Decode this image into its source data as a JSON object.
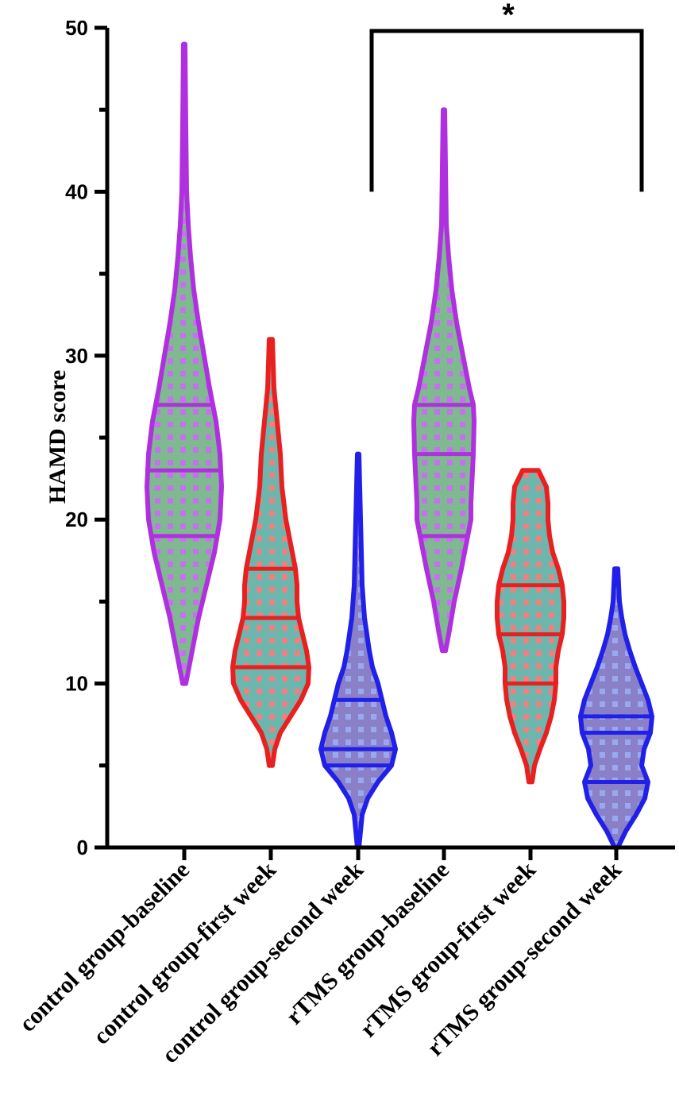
{
  "chart_data": {
    "type": "violin",
    "ylabel": "HAMD score",
    "ylim": [
      0,
      50
    ],
    "yticks_major": [
      0,
      10,
      20,
      30,
      40,
      50
    ],
    "yticks_minor_step": 5,
    "categories": [
      "control group-baseline",
      "control group-first week",
      "control group-second week",
      "rTMS group-baseline",
      "rTMS group-first week",
      "rTMS group-second week"
    ],
    "violins": [
      {
        "category": "control group-baseline",
        "color": "#b030e0",
        "fill": "#7fb98f",
        "dot": "#c670f0",
        "min": 10,
        "max": 49,
        "q1": 19,
        "median": 23,
        "q3": 27,
        "profile": [
          [
            10,
            0.02
          ],
          [
            12,
            0.1
          ],
          [
            14,
            0.18
          ],
          [
            16,
            0.28
          ],
          [
            18,
            0.38
          ],
          [
            20,
            0.45
          ],
          [
            22,
            0.47
          ],
          [
            24,
            0.45
          ],
          [
            26,
            0.4
          ],
          [
            28,
            0.32
          ],
          [
            30,
            0.25
          ],
          [
            32,
            0.18
          ],
          [
            34,
            0.12
          ],
          [
            36,
            0.08
          ],
          [
            38,
            0.05
          ],
          [
            40,
            0.03
          ],
          [
            44,
            0.02
          ],
          [
            49,
            0.01
          ]
        ]
      },
      {
        "category": "control group-first week",
        "color": "#e82020",
        "fill": "#6cb6ae",
        "dot": "#f08080",
        "min": 5,
        "max": 31,
        "q1": 11,
        "median": 14,
        "q3": 17,
        "profile": [
          [
            5,
            0.02
          ],
          [
            6,
            0.05
          ],
          [
            7,
            0.12
          ],
          [
            8,
            0.25
          ],
          [
            9,
            0.38
          ],
          [
            10,
            0.47
          ],
          [
            11,
            0.48
          ],
          [
            12,
            0.45
          ],
          [
            13,
            0.4
          ],
          [
            14,
            0.35
          ],
          [
            15,
            0.33
          ],
          [
            16,
            0.33
          ],
          [
            17,
            0.31
          ],
          [
            18,
            0.27
          ],
          [
            19,
            0.23
          ],
          [
            20,
            0.19
          ],
          [
            22,
            0.14
          ],
          [
            24,
            0.12
          ],
          [
            26,
            0.08
          ],
          [
            28,
            0.04
          ],
          [
            31,
            0.02
          ]
        ]
      },
      {
        "category": "control group-second week",
        "color": "#2020e8",
        "fill": "#8a80c8",
        "dot": "#9aa8f0",
        "min": 0,
        "max": 24,
        "q1": 5,
        "median": 6,
        "q3": 9,
        "profile": [
          [
            0,
            0.01
          ],
          [
            2,
            0.05
          ],
          [
            3,
            0.12
          ],
          [
            4,
            0.25
          ],
          [
            5,
            0.42
          ],
          [
            6,
            0.47
          ],
          [
            7,
            0.42
          ],
          [
            8,
            0.35
          ],
          [
            9,
            0.3
          ],
          [
            10,
            0.25
          ],
          [
            11,
            0.18
          ],
          [
            12,
            0.14
          ],
          [
            14,
            0.08
          ],
          [
            16,
            0.05
          ],
          [
            18,
            0.04
          ],
          [
            20,
            0.03
          ],
          [
            24,
            0.01
          ]
        ]
      },
      {
        "category": "rTMS group-baseline",
        "color": "#b030e0",
        "fill": "#7fb98f",
        "dot": "#c670f0",
        "min": 12,
        "max": 45,
        "q1": 19,
        "median": 24,
        "q3": 27,
        "profile": [
          [
            12,
            0.02
          ],
          [
            13,
            0.06
          ],
          [
            15,
            0.13
          ],
          [
            17,
            0.22
          ],
          [
            19,
            0.3
          ],
          [
            20,
            0.34
          ],
          [
            21,
            0.34
          ],
          [
            22,
            0.35
          ],
          [
            24,
            0.37
          ],
          [
            26,
            0.38
          ],
          [
            27,
            0.37
          ],
          [
            28,
            0.32
          ],
          [
            30,
            0.24
          ],
          [
            32,
            0.16
          ],
          [
            34,
            0.1
          ],
          [
            36,
            0.06
          ],
          [
            38,
            0.03
          ],
          [
            45,
            0.01
          ]
        ]
      },
      {
        "category": "rTMS group-first week",
        "color": "#e82020",
        "fill": "#6cb6ae",
        "dot": "#f08080",
        "min": 4,
        "max": 23,
        "q1": 10,
        "median": 13,
        "q3": 16,
        "profile": [
          [
            4,
            0.02
          ],
          [
            5,
            0.05
          ],
          [
            6,
            0.12
          ],
          [
            7,
            0.2
          ],
          [
            8,
            0.26
          ],
          [
            9,
            0.3
          ],
          [
            10,
            0.32
          ],
          [
            11,
            0.32
          ],
          [
            12,
            0.35
          ],
          [
            13,
            0.4
          ],
          [
            14,
            0.42
          ],
          [
            15,
            0.42
          ],
          [
            16,
            0.4
          ],
          [
            17,
            0.35
          ],
          [
            18,
            0.28
          ],
          [
            19,
            0.24
          ],
          [
            20,
            0.22
          ],
          [
            21,
            0.22
          ],
          [
            22,
            0.2
          ],
          [
            23,
            0.1
          ]
        ]
      },
      {
        "category": "rTMS group-second week",
        "color": "#2020e8",
        "fill": "#8a80c8",
        "dot": "#9aa8f0",
        "min": 0,
        "max": 17,
        "q1": 4,
        "median": 7,
        "q3": 8,
        "profile": [
          [
            0,
            0.02
          ],
          [
            1,
            0.12
          ],
          [
            2,
            0.25
          ],
          [
            3,
            0.36
          ],
          [
            4,
            0.4
          ],
          [
            5,
            0.32
          ],
          [
            6,
            0.35
          ],
          [
            7,
            0.43
          ],
          [
            8,
            0.45
          ],
          [
            9,
            0.4
          ],
          [
            10,
            0.32
          ],
          [
            11,
            0.24
          ],
          [
            12,
            0.17
          ],
          [
            13,
            0.11
          ],
          [
            14,
            0.07
          ],
          [
            15,
            0.04
          ],
          [
            17,
            0.02
          ]
        ]
      }
    ],
    "significance": {
      "label": "*",
      "from_category": 3,
      "to_category": 6,
      "bracket_y": 50,
      "leg_bottom_y": 40
    }
  }
}
